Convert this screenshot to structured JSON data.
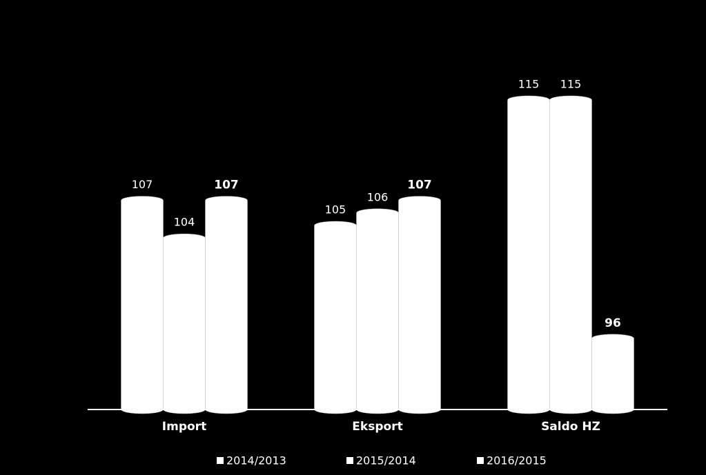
{
  "chart_data": {
    "type": "bar",
    "categories": [
      "Import",
      "Eksport",
      "Saldo HZ"
    ],
    "series": [
      {
        "name": "2014/2013",
        "color": "#ffffff",
        "values": [
          107,
          105,
          115
        ]
      },
      {
        "name": "2015/2014",
        "color": "#ffffff",
        "values": [
          104,
          106,
          115
        ]
      },
      {
        "name": "2016/2015",
        "color": "#ffffff",
        "values": [
          107,
          107,
          96
        ]
      }
    ],
    "ylim": [
      90,
      120
    ]
  }
}
